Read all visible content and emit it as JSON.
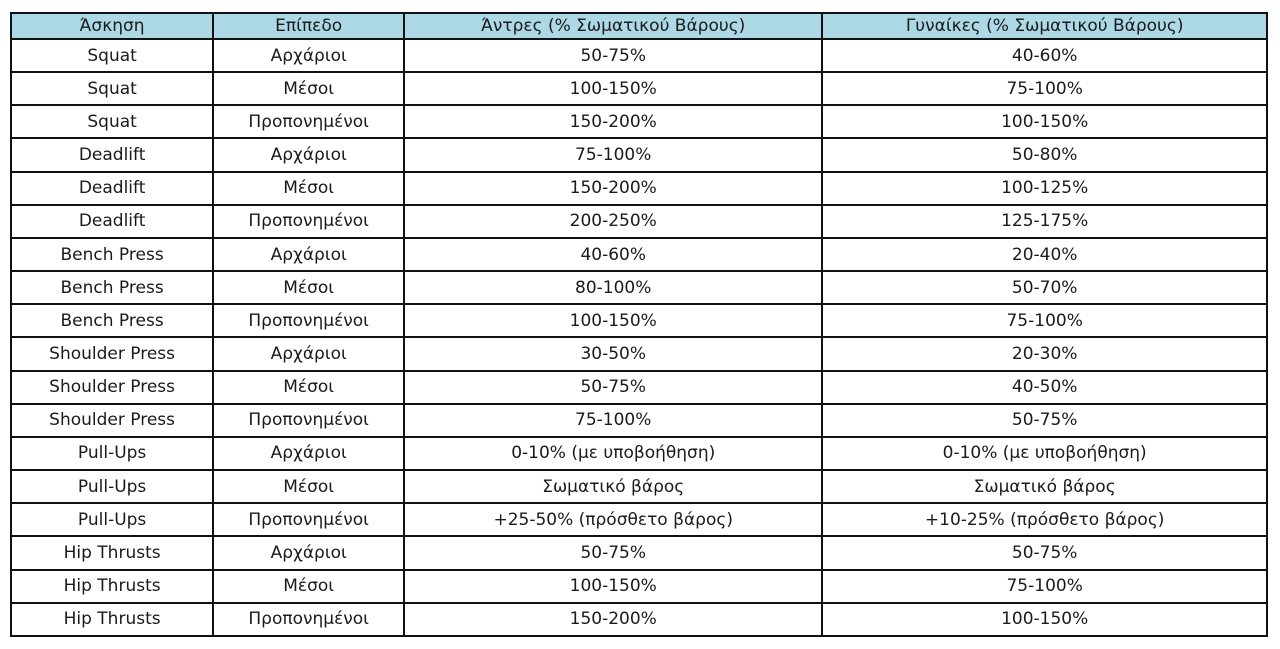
{
  "colors": {
    "header_bg": "#add8e6",
    "border": "#111111",
    "text": "#1a1a1a",
    "page_bg": "#ffffff"
  },
  "table": {
    "columns": [
      "Άσκηση",
      "Επίπεδο",
      "Άντρες (% Σωματικού Βάρους)",
      "Γυναίκες (% Σωματικού Βάρους)"
    ],
    "rows": [
      [
        "Squat",
        "Αρχάριοι",
        "50-75%",
        "40-60%"
      ],
      [
        "Squat",
        "Μέσοι",
        "100-150%",
        "75-100%"
      ],
      [
        "Squat",
        "Προπονημένοι",
        "150-200%",
        "100-150%"
      ],
      [
        "Deadlift",
        "Αρχάριοι",
        "75-100%",
        "50-80%"
      ],
      [
        "Deadlift",
        "Μέσοι",
        "150-200%",
        "100-125%"
      ],
      [
        "Deadlift",
        "Προπονημένοι",
        "200-250%",
        "125-175%"
      ],
      [
        "Bench Press",
        "Αρχάριοι",
        "40-60%",
        "20-40%"
      ],
      [
        "Bench Press",
        "Μέσοι",
        "80-100%",
        "50-70%"
      ],
      [
        "Bench Press",
        "Προπονημένοι",
        "100-150%",
        "75-100%"
      ],
      [
        "Shoulder Press",
        "Αρχάριοι",
        "30-50%",
        "20-30%"
      ],
      [
        "Shoulder Press",
        "Μέσοι",
        "50-75%",
        "40-50%"
      ],
      [
        "Shoulder Press",
        "Προπονημένοι",
        "75-100%",
        "50-75%"
      ],
      [
        "Pull-Ups",
        "Αρχάριοι",
        "0-10% (με υποβοήθηση)",
        "0-10% (με υποβοήθηση)"
      ],
      [
        "Pull-Ups",
        "Μέσοι",
        "Σωματικό βάρος",
        "Σωματικό βάρος"
      ],
      [
        "Pull-Ups",
        "Προπονημένοι",
        "+25-50% (πρόσθετο βάρος)",
        "+10-25% (πρόσθετο βάρος)"
      ],
      [
        "Hip Thrusts",
        "Αρχάριοι",
        "50-75%",
        "50-75%"
      ],
      [
        "Hip Thrusts",
        "Μέσοι",
        "100-150%",
        "75-100%"
      ],
      [
        "Hip Thrusts",
        "Προπονημένοι",
        "150-200%",
        "100-150%"
      ]
    ]
  }
}
